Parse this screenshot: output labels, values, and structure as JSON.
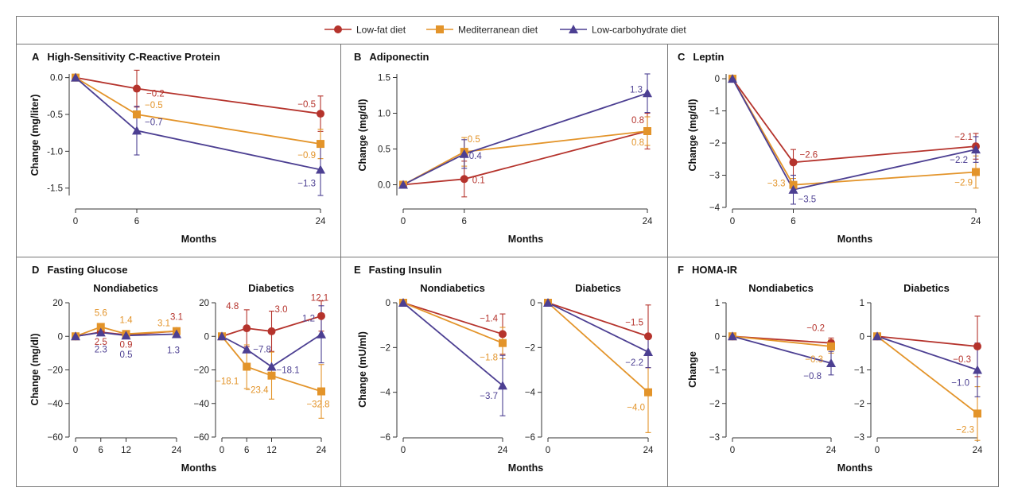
{
  "colors": {
    "lowfat": "#B5332C",
    "med": "#E3942A",
    "lowcarb": "#4C3F92",
    "frame": "#777777"
  },
  "legend": [
    {
      "key": "lowfat",
      "label": "Low-fat diet",
      "marker": "circle"
    },
    {
      "key": "med",
      "label": "Mediterranean diet",
      "marker": "square"
    },
    {
      "key": "lowcarb",
      "label": "Low-carbohydrate diet",
      "marker": "triangle"
    }
  ],
  "xlabel": "Months",
  "chart_data": [
    {
      "type": "line",
      "letter": "A",
      "title": "High-Sensitivity C-Reactive Protein",
      "ylabel": "Change (mg/liter)",
      "ylim": [
        -1.6,
        0.05
      ],
      "yticks": [
        "0.0",
        "-0.5",
        "-1.0",
        "-1.5"
      ],
      "ytick_values": [
        0,
        -0.5,
        -1.0,
        -1.5
      ],
      "xlim": [
        0,
        24
      ],
      "xticks": [
        0,
        6,
        24
      ],
      "series": [
        {
          "key": "lowfat",
          "x": [
            0,
            6,
            24
          ],
          "y": [
            0,
            -0.15,
            -0.49
          ],
          "err": [
            0,
            0.25,
            0.24
          ],
          "labels": [
            "",
            "−0.2",
            "−0.5"
          ]
        },
        {
          "key": "med",
          "x": [
            0,
            6,
            24
          ],
          "y": [
            0,
            -0.5,
            -0.9
          ],
          "err": [
            0,
            0,
            0.2
          ],
          "labels": [
            "",
            "−0.5",
            "−0.9"
          ]
        },
        {
          "key": "lowcarb",
          "x": [
            0,
            6,
            24
          ],
          "y": [
            0,
            -0.72,
            -1.25
          ],
          "err": [
            0,
            0.33,
            0.35
          ],
          "labels": [
            "",
            "−0.7",
            "−1.3"
          ]
        }
      ]
    },
    {
      "type": "line",
      "letter": "B",
      "title": "Adiponectin",
      "ylabel": "Change (mg/dl)",
      "ylim": [
        -0.15,
        1.55
      ],
      "yticks": [
        "0.0",
        "0.5",
        "1.0",
        "1.5"
      ],
      "ytick_values": [
        0,
        0.5,
        1.0,
        1.5
      ],
      "xlim": [
        0,
        24
      ],
      "xticks": [
        0,
        6,
        24
      ],
      "series": [
        {
          "key": "lowfat",
          "x": [
            0,
            6,
            24
          ],
          "y": [
            0,
            0.08,
            0.75
          ],
          "err": [
            0,
            0.25,
            0.25
          ],
          "labels": [
            "",
            "0.1",
            "0.8"
          ]
        },
        {
          "key": "med",
          "x": [
            0,
            6,
            24
          ],
          "y": [
            0,
            0.46,
            0.75
          ],
          "err": [
            0,
            0.2,
            0.2
          ],
          "labels": [
            "",
            "0.5",
            "0.8"
          ]
        },
        {
          "key": "lowcarb",
          "x": [
            0,
            6,
            24
          ],
          "y": [
            0,
            0.43,
            1.28
          ],
          "err": [
            0,
            0.2,
            0.27
          ],
          "labels": [
            "",
            "0.4",
            "1.3"
          ]
        }
      ]
    },
    {
      "type": "line",
      "letter": "C",
      "title": "Leptin",
      "ylabel": "Change (mg/dl)",
      "ylim": [
        -4,
        0.15
      ],
      "yticks": [
        "0",
        "−1",
        "−2",
        "−3",
        "−4"
      ],
      "ytick_values": [
        0,
        -1,
        -2,
        -3,
        -4
      ],
      "xlim": [
        0,
        24
      ],
      "xticks": [
        0,
        6,
        24
      ],
      "series": [
        {
          "key": "lowfat",
          "x": [
            0,
            6,
            24
          ],
          "y": [
            0,
            -2.6,
            -2.1
          ],
          "err": [
            0,
            0.4,
            0.4
          ],
          "labels": [
            "",
            "−2.6",
            "−2.1"
          ]
        },
        {
          "key": "med",
          "x": [
            0,
            6,
            24
          ],
          "y": [
            0,
            -3.3,
            -2.9
          ],
          "err": [
            0,
            0.2,
            0.5
          ],
          "labels": [
            "",
            "−3.3",
            "−2.9"
          ]
        },
        {
          "key": "lowcarb",
          "x": [
            0,
            6,
            24
          ],
          "y": [
            0,
            -3.45,
            -2.2
          ],
          "err": [
            0,
            0.45,
            0.4
          ],
          "labels": [
            "",
            "−3.5",
            "−2.2"
          ]
        }
      ]
    },
    {
      "type": "line",
      "letter": "D",
      "title": "Fasting Glucose",
      "subtitle": "Nondiabetics",
      "ylabel": "Change (mg/dl)",
      "ylim": [
        -60,
        20
      ],
      "yticks": [
        "20",
        "0",
        "−20",
        "−40",
        "−60"
      ],
      "ytick_values": [
        20,
        0,
        -20,
        -40,
        -60
      ],
      "xlim": [
        0,
        24
      ],
      "xticks": [
        0,
        6,
        12,
        24
      ],
      "series": [
        {
          "key": "lowfat",
          "x": [
            0,
            6,
            12,
            24
          ],
          "y": [
            0,
            2.5,
            0.9,
            3.1
          ],
          "err": [
            0,
            0,
            0,
            0
          ],
          "labels": [
            "",
            "2.5",
            "0.9",
            "3.1"
          ]
        },
        {
          "key": "med",
          "x": [
            0,
            6,
            12,
            24
          ],
          "y": [
            0,
            5.6,
            1.4,
            3.1
          ],
          "err": [
            0,
            0,
            0,
            0
          ],
          "labels": [
            "",
            "5.6",
            "1.4",
            "3.1"
          ]
        },
        {
          "key": "lowcarb",
          "x": [
            0,
            6,
            12,
            24
          ],
          "y": [
            0,
            2.3,
            0.5,
            1.3
          ],
          "err": [
            0,
            0,
            0,
            0
          ],
          "labels": [
            "",
            "2.3",
            "0.5",
            "1.3"
          ]
        }
      ]
    },
    {
      "type": "line",
      "subtitle": "Diabetics",
      "ylim": [
        -60,
        20
      ],
      "yticks": [
        "20",
        "0",
        "−20",
        "−40",
        "−60"
      ],
      "ytick_values": [
        20,
        0,
        -20,
        -40,
        -60
      ],
      "xlim": [
        0,
        24
      ],
      "xticks": [
        0,
        6,
        12,
        24
      ],
      "series": [
        {
          "key": "lowfat",
          "x": [
            0,
            6,
            12,
            24
          ],
          "y": [
            0,
            4.8,
            3.0,
            12.1
          ],
          "err": [
            0,
            11,
            12,
            9
          ],
          "labels": [
            "",
            "4.8",
            "3.0",
            "12.1"
          ]
        },
        {
          "key": "med",
          "x": [
            0,
            6,
            12,
            24
          ],
          "y": [
            0,
            -18.1,
            -23.4,
            -32.8
          ],
          "err": [
            0,
            13,
            14,
            16
          ],
          "labels": [
            "",
            "−18.1",
            "−23.4",
            "−32.8"
          ]
        },
        {
          "key": "lowcarb",
          "x": [
            0,
            6,
            12,
            24
          ],
          "y": [
            0,
            -7.8,
            -18.1,
            1.2
          ],
          "err": [
            0,
            0,
            0,
            17
          ],
          "labels": [
            "",
            "−7.8",
            "−18.1",
            "1.2"
          ]
        }
      ]
    },
    {
      "type": "line",
      "letter": "E",
      "title": "Fasting Insulin",
      "subtitle": "Nondiabetics",
      "ylabel": "Change (mU/ml)",
      "ylim": [
        -6,
        0
      ],
      "yticks": [
        "0",
        "−2",
        "−4",
        "−6"
      ],
      "ytick_values": [
        0,
        -2,
        -4,
        -6
      ],
      "xlim": [
        0,
        24
      ],
      "xticks": [
        0,
        24
      ],
      "series": [
        {
          "key": "lowfat",
          "x": [
            0,
            24
          ],
          "y": [
            0,
            -1.4
          ],
          "err": [
            0,
            0.9
          ],
          "labels": [
            "",
            "−1.4"
          ]
        },
        {
          "key": "med",
          "x": [
            0,
            24
          ],
          "y": [
            0,
            -1.8
          ],
          "err": [
            0,
            0.7
          ],
          "labels": [
            "",
            "−1.8"
          ]
        },
        {
          "key": "lowcarb",
          "x": [
            0,
            24
          ],
          "y": [
            0,
            -3.7
          ],
          "err": [
            0,
            1.35
          ],
          "labels": [
            "",
            "−3.7"
          ]
        }
      ]
    },
    {
      "type": "line",
      "subtitle": "Diabetics",
      "ylim": [
        -6,
        0
      ],
      "yticks": [
        "0",
        "−2",
        "−4",
        "−6"
      ],
      "ytick_values": [
        0,
        -2,
        -4,
        -6
      ],
      "xlim": [
        0,
        24
      ],
      "xticks": [
        0,
        24
      ],
      "series": [
        {
          "key": "lowfat",
          "x": [
            0,
            24
          ],
          "y": [
            0,
            -1.5
          ],
          "err": [
            0,
            1.4
          ],
          "labels": [
            "",
            "−1.5"
          ]
        },
        {
          "key": "med",
          "x": [
            0,
            24
          ],
          "y": [
            0,
            -4.0
          ],
          "err": [
            0,
            1.8
          ],
          "labels": [
            "",
            "−4.0"
          ]
        },
        {
          "key": "lowcarb",
          "x": [
            0,
            24
          ],
          "y": [
            0,
            -2.2
          ],
          "err": [
            0,
            0.7
          ],
          "labels": [
            "",
            "−2.2"
          ]
        }
      ]
    },
    {
      "type": "line",
      "letter": "F",
      "title": "HOMA-IR",
      "subtitle": "Nondiabetics",
      "ylabel": "Change",
      "ylim": [
        -3,
        1
      ],
      "yticks": [
        "1",
        "0",
        "−1",
        "−2",
        "−3"
      ],
      "ytick_values": [
        1,
        0,
        -1,
        -2,
        -3
      ],
      "xlim": [
        0,
        24
      ],
      "xticks": [
        0,
        24
      ],
      "series": [
        {
          "key": "lowfat",
          "x": [
            0,
            24
          ],
          "y": [
            0,
            -0.2
          ],
          "err": [
            0,
            0.15
          ],
          "labels": [
            "",
            "−0.2"
          ]
        },
        {
          "key": "med",
          "x": [
            0,
            24
          ],
          "y": [
            0,
            -0.3
          ],
          "err": [
            0,
            0.2
          ],
          "labels": [
            "",
            "−0.3"
          ]
        },
        {
          "key": "lowcarb",
          "x": [
            0,
            24
          ],
          "y": [
            0,
            -0.8
          ],
          "err": [
            0,
            0.35
          ],
          "labels": [
            "",
            "−0.8"
          ]
        }
      ]
    },
    {
      "type": "line",
      "subtitle": "Diabetics",
      "ylim": [
        -3,
        1
      ],
      "yticks": [
        "1",
        "0",
        "−1",
        "−2",
        "−3"
      ],
      "ytick_values": [
        1,
        0,
        -1,
        -2,
        -3
      ],
      "xlim": [
        0,
        24
      ],
      "xticks": [
        0,
        24
      ],
      "series": [
        {
          "key": "lowfat",
          "x": [
            0,
            24
          ],
          "y": [
            0,
            -0.3
          ],
          "err": [
            0,
            0.9
          ],
          "labels": [
            "",
            "−0.3"
          ]
        },
        {
          "key": "med",
          "x": [
            0,
            24
          ],
          "y": [
            0,
            -2.3
          ],
          "err": [
            0,
            0.8
          ],
          "labels": [
            "",
            "−2.3"
          ]
        },
        {
          "key": "lowcarb",
          "x": [
            0,
            24
          ],
          "y": [
            0,
            -1.0
          ],
          "err": [
            0,
            0.8
          ],
          "labels": [
            "",
            "−1.0"
          ]
        }
      ]
    }
  ]
}
